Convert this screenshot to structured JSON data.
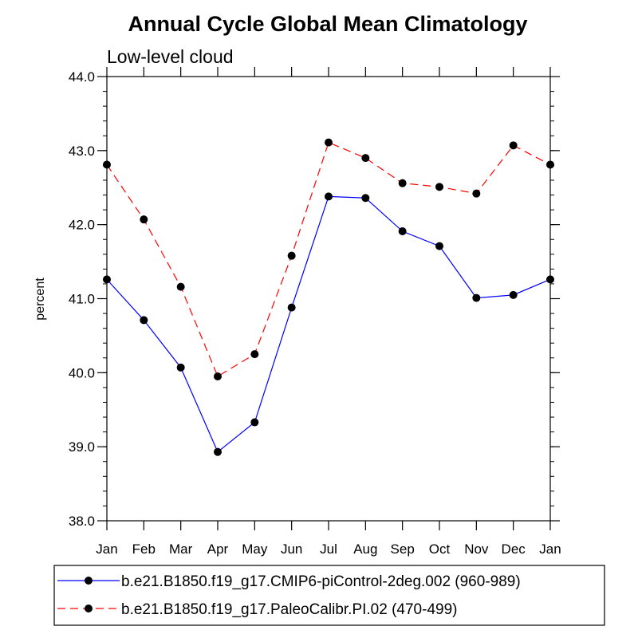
{
  "chart_data": {
    "type": "line",
    "title": "Annual Cycle Global Mean Climatology",
    "subtitle": "Low-level cloud",
    "xlabel": "",
    "ylabel": "percent",
    "categories": [
      "Jan",
      "Feb",
      "Mar",
      "Apr",
      "May",
      "Jun",
      "Jul",
      "Aug",
      "Sep",
      "Oct",
      "Nov",
      "Dec",
      "Jan"
    ],
    "ylim": [
      38.0,
      44.0
    ],
    "yticks": [
      "38.0",
      "39.0",
      "40.0",
      "41.0",
      "42.0",
      "43.0",
      "44.0"
    ],
    "series": [
      {
        "name": "b.e21.B1850.f19_g17.CMIP6-piControl-2deg.002 (960-989)",
        "color": "#0000ff",
        "style": "solid",
        "values": [
          41.26,
          40.71,
          40.07,
          38.93,
          39.33,
          40.88,
          42.38,
          42.36,
          41.91,
          41.71,
          41.01,
          41.05,
          41.26
        ]
      },
      {
        "name": "b.e21.B1850.f19_g17.PaleoCalibr.PI.02 (470-499)",
        "color": "#ff0000",
        "style": "dashed",
        "values": [
          42.81,
          42.07,
          41.16,
          39.95,
          40.25,
          41.58,
          43.11,
          42.9,
          42.56,
          42.51,
          42.42,
          43.07,
          42.81
        ]
      }
    ],
    "legend_position": "bottom"
  }
}
